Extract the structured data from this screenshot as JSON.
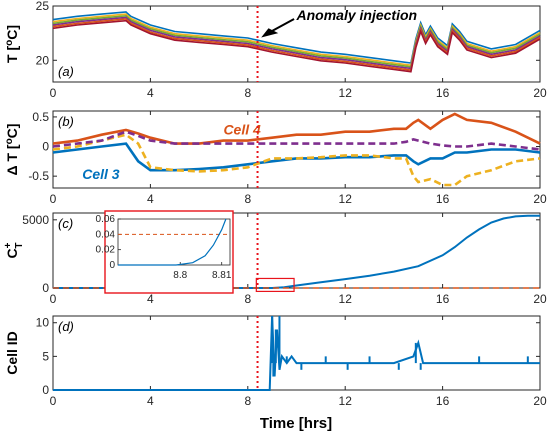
{
  "x_axis_label": "Time [hrs]",
  "x_ticks": [
    "0",
    "4",
    "8",
    "12",
    "16",
    "20"
  ],
  "anomaly_label": "Anomaly injection",
  "colors": {
    "cell_blue": "#0072bd",
    "cell_orange": "#d95319",
    "cell_yellow": "#edb120",
    "cell_purple": "#7e2f8e",
    "anomaly_line": "#e8131b",
    "zoom_box": "#e8131b"
  },
  "chart_data": [
    {
      "type": "line",
      "panel": "(a)",
      "ylabel": "T [oC]",
      "ylabel_base": "T [",
      "ylabel_sup": "o",
      "ylabel_tail": "C]",
      "xlim": [
        0,
        20
      ],
      "ylim": [
        18,
        25
      ],
      "yticks": [
        "20",
        "25"
      ],
      "annotation": "Anomaly injection",
      "anomaly_time": 8.4,
      "x": [
        0,
        1,
        2,
        3,
        3.2,
        4,
        5,
        6,
        7,
        8,
        8.4,
        9,
        10,
        11,
        12,
        13,
        14,
        14.7,
        14.9,
        15.1,
        15.3,
        15.5,
        15.8,
        16.2,
        16.4,
        16.7,
        17,
        18,
        19,
        20
      ],
      "series": [
        {
          "values": [
            23.3,
            23.6,
            23.8,
            24.0,
            23.6,
            22.8,
            22.2,
            22.0,
            21.8,
            21.6,
            21.4,
            21.1,
            20.7,
            20.3,
            20.1,
            19.8,
            19.5,
            19.3,
            21.5,
            23.0,
            21.9,
            22.7,
            21.6,
            20.9,
            22.9,
            22.2,
            21.3,
            20.6,
            21.0,
            22.3
          ]
        }
      ]
    },
    {
      "type": "line",
      "panel": "(b)",
      "ylabel": "ΔT [oC]",
      "ylabel_base": "Δ T [",
      "ylabel_sup": "o",
      "ylabel_tail": "C]",
      "xlim": [
        0,
        20
      ],
      "ylim": [
        -0.7,
        0.6
      ],
      "yticks": [
        "0.5",
        "0",
        "-0.5"
      ],
      "anomaly_time": 8.4,
      "labels": [
        "Cell 4",
        "Cell 3"
      ],
      "x": [
        0,
        1,
        2,
        3,
        3.5,
        4,
        5,
        6,
        7,
        8,
        9,
        10,
        11,
        12,
        13,
        14,
        14.5,
        14.8,
        15,
        15.5,
        16,
        16.5,
        17,
        18,
        19,
        20
      ],
      "series": [
        {
          "name": "Cell 4",
          "values": [
            0.05,
            0.1,
            0.2,
            0.28,
            0.22,
            0.15,
            0.05,
            0.05,
            0.1,
            0.1,
            0.15,
            0.2,
            0.2,
            0.25,
            0.25,
            0.3,
            0.3,
            0.4,
            0.45,
            0.3,
            0.45,
            0.55,
            0.45,
            0.4,
            0.25,
            0.05
          ]
        },
        {
          "name": "Cell 3",
          "values": [
            -0.1,
            -0.05,
            0.0,
            0.05,
            -0.25,
            -0.4,
            -0.4,
            -0.38,
            -0.35,
            -0.3,
            -0.25,
            -0.2,
            -0.2,
            -0.18,
            -0.18,
            -0.15,
            -0.15,
            -0.25,
            -0.3,
            -0.2,
            -0.2,
            -0.1,
            -0.1,
            -0.05,
            -0.05,
            -0.1
          ]
        },
        {
          "values": [
            -0.05,
            0.0,
            0.1,
            0.2,
            0.05,
            -0.35,
            -0.4,
            -0.42,
            -0.4,
            -0.35,
            -0.2,
            -0.2,
            -0.18,
            -0.15,
            -0.15,
            -0.2,
            -0.2,
            -0.5,
            -0.6,
            -0.55,
            -0.65,
            -0.65,
            -0.5,
            -0.4,
            -0.25,
            -0.2
          ]
        },
        {
          "values": [
            0.0,
            0.05,
            0.1,
            0.25,
            0.18,
            0.1,
            0.05,
            0.05,
            0.05,
            0.05,
            0.05,
            0.05,
            0.05,
            0.05,
            0.05,
            0.05,
            0.08,
            0.12,
            0.1,
            0.05,
            0.02,
            0.0,
            0.0,
            0.05,
            0.0,
            -0.05
          ]
        }
      ]
    },
    {
      "type": "line",
      "panel": "(c)",
      "ylabel": "C+T",
      "ylabel_base": "C",
      "ylabel_sup": "+",
      "ylabel_sub": "T",
      "xlim": [
        0,
        20
      ],
      "ylim": [
        0,
        5500
      ],
      "yticks": [
        "0",
        "5000"
      ],
      "anomaly_time": 8.4,
      "x": [
        0,
        8,
        9,
        9.5,
        10,
        11,
        12,
        13,
        14,
        15,
        16,
        16.5,
        17,
        17.5,
        18,
        18.5,
        19,
        19.5,
        20
      ],
      "series": [
        {
          "values": [
            0,
            0,
            0,
            60,
            180,
            420,
            650,
            900,
            1200,
            1600,
            2400,
            3000,
            3700,
            4300,
            4800,
            5100,
            5250,
            5300,
            5300
          ]
        },
        {
          "values": [
            0,
            0,
            0,
            0,
            0,
            0,
            0,
            0,
            0,
            0,
            0,
            0,
            0,
            0,
            0,
            0,
            0,
            0,
            0
          ]
        }
      ],
      "threshold": 0,
      "inset": {
        "xlim": [
          8.785,
          8.812
        ],
        "ylim": [
          0,
          0.06
        ],
        "xticks": [
          "8.8",
          "8.81"
        ],
        "yticks": [
          "0",
          "0.02",
          "0.04",
          "0.06"
        ],
        "threshold": 0.04,
        "x": [
          8.785,
          8.799,
          8.803,
          8.806,
          8.808,
          8.81,
          8.811
        ],
        "values": [
          0,
          0,
          0.003,
          0.012,
          0.026,
          0.046,
          0.06
        ]
      }
    },
    {
      "type": "line",
      "panel": "(d)",
      "ylabel": "Cell ID",
      "xlim": [
        0,
        20
      ],
      "ylim": [
        0,
        11
      ],
      "yticks": [
        "0",
        "5",
        "10"
      ],
      "anomaly_time": 8.4,
      "x": [
        0,
        8.9,
        9.0,
        9.1,
        9.2,
        9.3,
        9.4,
        9.6,
        9.8,
        10,
        11,
        12,
        13,
        14,
        14.8,
        15,
        15.2,
        16,
        17,
        18,
        19,
        19.5,
        20
      ],
      "series": [
        {
          "values": [
            0,
            0,
            11,
            2,
            9,
            3,
            5,
            4,
            5,
            4,
            4,
            4,
            4,
            4,
            5,
            7,
            4,
            4,
            4,
            4,
            4,
            4,
            4
          ]
        }
      ]
    }
  ]
}
